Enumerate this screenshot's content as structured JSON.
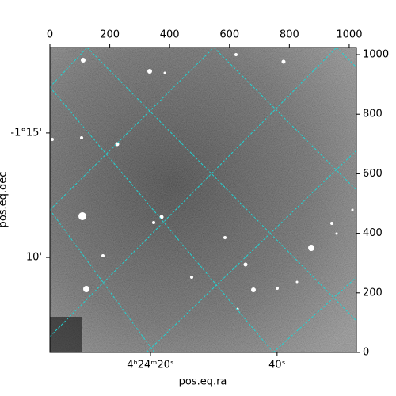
{
  "chart_data": {
    "type": "image",
    "xlabel": "pos.eq.ra",
    "ylabel": "pos.eq.dec",
    "xlim": [
      0,
      1024
    ],
    "ylim": [
      0,
      1024
    ],
    "xticks": [
      0,
      200,
      400,
      600,
      800,
      1000
    ],
    "yticks": [
      0,
      200,
      400,
      600,
      800,
      1000
    ],
    "ra_ticks": [
      {
        "value": 336,
        "label": "4ʰ24ᵐ20ˢ"
      },
      {
        "value": 759,
        "label": "40ˢ"
      }
    ],
    "dec_ticks": [
      {
        "value": 737,
        "label": "-1°15'"
      },
      {
        "value": 319,
        "label": "10'"
      }
    ],
    "grid_color": "#22d3d3"
  }
}
